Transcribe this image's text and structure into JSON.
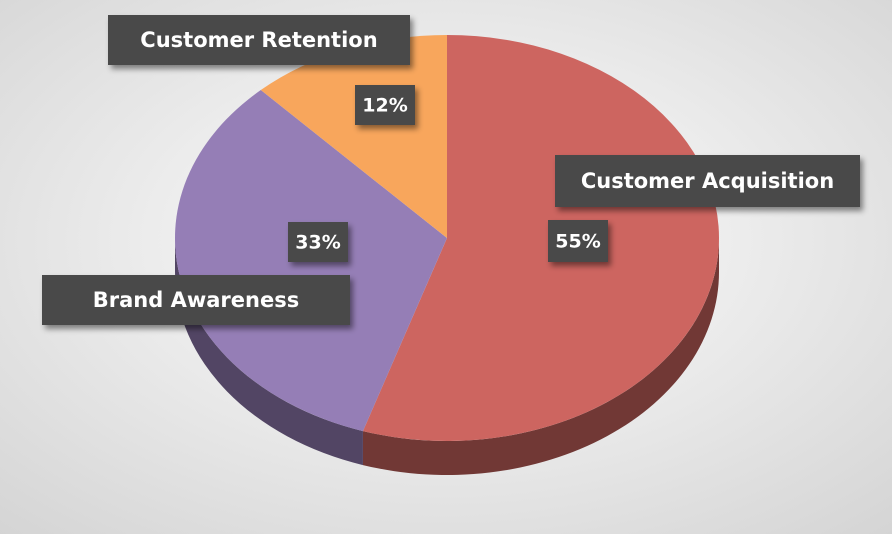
{
  "chart_data": {
    "type": "pie",
    "categories": [
      "Customer Acquisition",
      "Brand Awareness",
      "Customer Retention"
    ],
    "values": [
      55,
      33,
      12
    ],
    "value_labels": [
      "55%",
      "33%",
      "12%"
    ],
    "colors": [
      "#cd6560",
      "#957eb6",
      "#f8a65c"
    ]
  }
}
